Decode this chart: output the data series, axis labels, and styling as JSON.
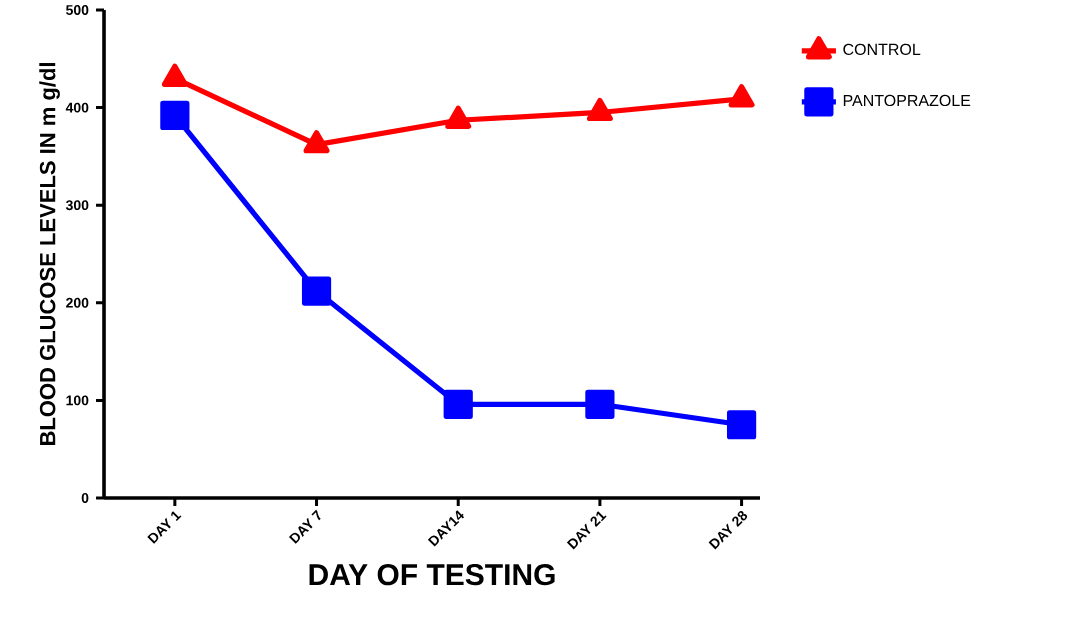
{
  "chart_data": {
    "type": "line",
    "xlabel": "DAY OF TESTING",
    "ylabel": "BLOOD GLUCOSE LEVELS IN m g/dl",
    "categories": [
      "DAY 1",
      "DAY 7",
      "DAY14",
      "DAY 21",
      "DAY 28"
    ],
    "series": [
      {
        "name": "CONTROL",
        "color": "#ff0000",
        "marker": "triangle",
        "values": [
          430,
          362,
          387,
          395,
          409
        ]
      },
      {
        "name": "PANTOPRAZOLE",
        "color": "#0000ff",
        "marker": "square",
        "values": [
          392,
          212,
          96,
          96,
          75
        ]
      }
    ],
    "ylim": [
      0,
      500
    ],
    "yticks": [
      0,
      100,
      200,
      300,
      400,
      500
    ],
    "grid": false,
    "legend": "right",
    "line_style": "solid"
  }
}
